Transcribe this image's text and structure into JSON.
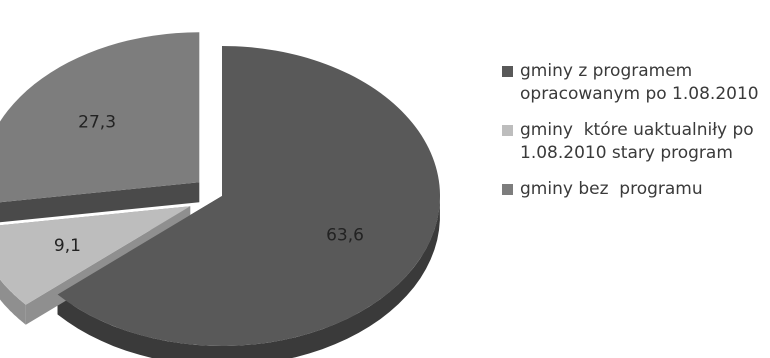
{
  "chart_data": {
    "type": "pie",
    "style": "3d-exploded",
    "title": "",
    "legend_position": "right",
    "slices": [
      {
        "label": "gminy z programem opracowanym po 1.08.2010",
        "value": 63.6,
        "value_label": "63,6",
        "color": "#595959",
        "side_color": "#3a3a3a"
      },
      {
        "label": "gminy  które uaktualniły po 1.08.2010 stary program",
        "value": 9.1,
        "value_label": "9,1",
        "color": "#bdbdbd",
        "side_color": "#8f8f8f"
      },
      {
        "label": "gminy bez  programu",
        "value": 27.3,
        "value_label": "27,3",
        "color": "#7d7d7d",
        "side_color": "#4a4a4a"
      }
    ]
  }
}
